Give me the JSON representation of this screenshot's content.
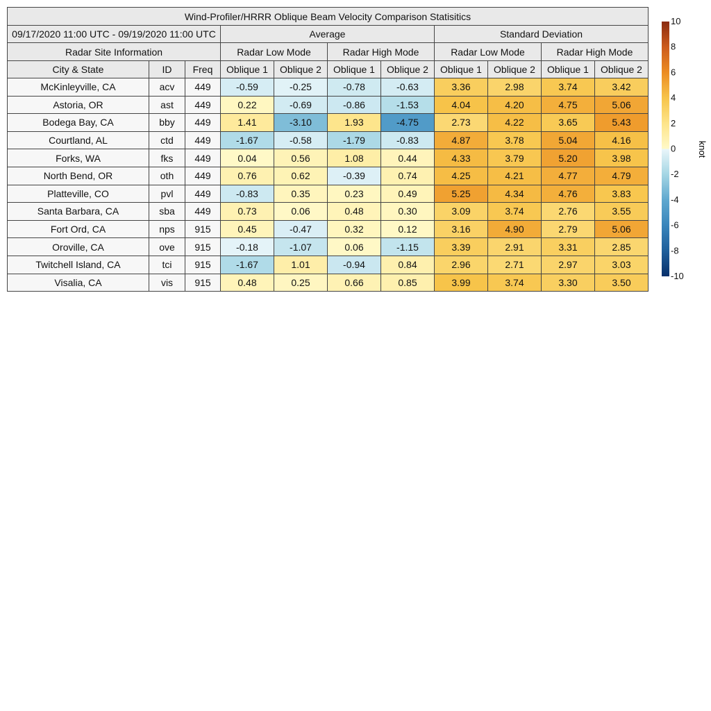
{
  "chart_data": {
    "type": "table",
    "title": "Wind-Profiler/HRRR Oblique Beam Velocity Comparison Statisitics",
    "period": "09/17/2020 11:00 UTC - 09/19/2020 11:00 UTC",
    "group_headers": {
      "average": "Average",
      "std": "Standard Deviation"
    },
    "info_header": "Radar Site Information",
    "mode_headers": [
      "Radar Low Mode",
      "Radar High Mode",
      "Radar Low Mode",
      "Radar High Mode"
    ],
    "columns": [
      "City & State",
      "ID",
      "Freq",
      "Oblique 1",
      "Oblique 2",
      "Oblique 1",
      "Oblique 2",
      "Oblique 1",
      "Oblique 2",
      "Oblique 1",
      "Oblique 2"
    ],
    "rows": [
      {
        "city": "McKinleyville, CA",
        "id": "acv",
        "freq": "449",
        "values": [
          "-0.59",
          "-0.25",
          "-0.78",
          "-0.63",
          "3.36",
          "2.98",
          "3.74",
          "3.42"
        ]
      },
      {
        "city": "Astoria, OR",
        "id": "ast",
        "freq": "449",
        "values": [
          "0.22",
          "-0.69",
          "-0.86",
          "-1.53",
          "4.04",
          "4.20",
          "4.75",
          "5.06"
        ]
      },
      {
        "city": "Bodega Bay, CA",
        "id": "bby",
        "freq": "449",
        "values": [
          "1.41",
          "-3.10",
          "1.93",
          "-4.75",
          "2.73",
          "4.22",
          "3.65",
          "5.43"
        ]
      },
      {
        "city": "Courtland, AL",
        "id": "ctd",
        "freq": "449",
        "values": [
          "-1.67",
          "-0.58",
          "-1.79",
          "-0.83",
          "4.87",
          "3.78",
          "5.04",
          "4.16"
        ]
      },
      {
        "city": "Forks, WA",
        "id": "fks",
        "freq": "449",
        "values": [
          "0.04",
          "0.56",
          "1.08",
          "0.44",
          "4.33",
          "3.79",
          "5.20",
          "3.98"
        ]
      },
      {
        "city": "North Bend, OR",
        "id": "oth",
        "freq": "449",
        "values": [
          "0.76",
          "0.62",
          "-0.39",
          "0.74",
          "4.25",
          "4.21",
          "4.77",
          "4.79"
        ]
      },
      {
        "city": "Platteville, CO",
        "id": "pvl",
        "freq": "449",
        "values": [
          "-0.83",
          "0.35",
          "0.23",
          "0.49",
          "5.25",
          "4.34",
          "4.76",
          "3.83"
        ]
      },
      {
        "city": "Santa Barbara, CA",
        "id": "sba",
        "freq": "449",
        "values": [
          "0.73",
          "0.06",
          "0.48",
          "0.30",
          "3.09",
          "3.74",
          "2.76",
          "3.55"
        ]
      },
      {
        "city": "Fort Ord, CA",
        "id": "nps",
        "freq": "915",
        "values": [
          "0.45",
          "-0.47",
          "0.32",
          "0.12",
          "3.16",
          "4.90",
          "2.79",
          "5.06"
        ]
      },
      {
        "city": "Oroville, CA",
        "id": "ove",
        "freq": "915",
        "values": [
          "-0.18",
          "-1.07",
          "0.06",
          "-1.15",
          "3.39",
          "2.91",
          "3.31",
          "2.85"
        ]
      },
      {
        "city": "Twitchell Island, CA",
        "id": "tci",
        "freq": "915",
        "values": [
          "-1.67",
          "1.01",
          "-0.94",
          "0.84",
          "2.96",
          "2.71",
          "2.97",
          "3.03"
        ]
      },
      {
        "city": "Visalia, CA",
        "id": "vis",
        "freq": "915",
        "values": [
          "0.48",
          "0.25",
          "0.66",
          "0.85",
          "3.99",
          "3.74",
          "3.30",
          "3.50"
        ]
      }
    ],
    "colorbar": {
      "label": "knot",
      "range": [
        -10,
        10
      ],
      "ticks": [
        "10",
        "8",
        "6",
        "4",
        "2",
        "0",
        "-2",
        "-4",
        "-6",
        "-8",
        "-10"
      ],
      "tick_values": [
        10,
        8,
        6,
        4,
        2,
        0,
        -2,
        -4,
        -6,
        -8,
        -10
      ],
      "stops": [
        {
          "v": -10,
          "color": "#08306b"
        },
        {
          "v": -8,
          "color": "#1f5f9b"
        },
        {
          "v": -6,
          "color": "#3a85bb"
        },
        {
          "v": -4,
          "color": "#5fa8cf"
        },
        {
          "v": -2,
          "color": "#a5d6e4"
        },
        {
          "v": 0,
          "color": "#eaf6fa"
        },
        {
          "v": 0.01,
          "color": "#fff9c8"
        },
        {
          "v": 2,
          "color": "#fde48a"
        },
        {
          "v": 4,
          "color": "#f7c44a"
        },
        {
          "v": 6,
          "color": "#ec8c22"
        },
        {
          "v": 8,
          "color": "#cc5b1d"
        },
        {
          "v": 10,
          "color": "#8a2a0f"
        }
      ]
    }
  }
}
